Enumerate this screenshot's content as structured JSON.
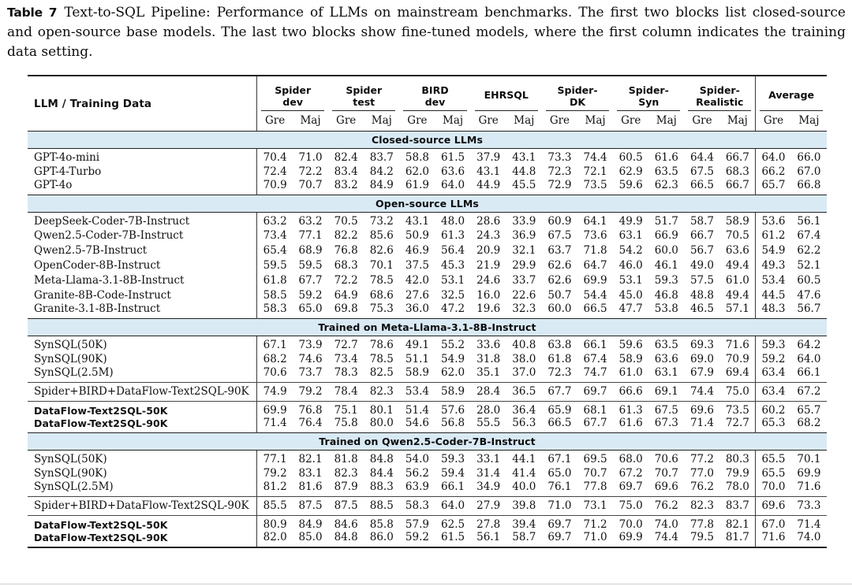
{
  "caption": {
    "label": "Table 7",
    "text": "Text-to-SQL Pipeline: Performance of LLMs on mainstream benchmarks. The first two blocks list closed-source and open-source base models. The last two blocks show fine-tuned models, where the first column indicates the training data setting."
  },
  "colors": {
    "section_band_bg": "#d9eaf5",
    "rule_color": "#222222",
    "text_color": "#111111"
  },
  "table": {
    "first_col_header": "LLM / Training Data",
    "metric_subheaders": [
      "Gre",
      "Maj"
    ],
    "benchmarks": [
      {
        "id": "spider-dev",
        "lines": [
          "Spider",
          "dev"
        ]
      },
      {
        "id": "spider-test",
        "lines": [
          "Spider",
          "test"
        ]
      },
      {
        "id": "bird-dev",
        "lines": [
          "BIRD",
          "dev"
        ]
      },
      {
        "id": "ehrsql",
        "lines": [
          "EHRSQL"
        ]
      },
      {
        "id": "spider-dk",
        "lines": [
          "Spider-",
          "DK"
        ]
      },
      {
        "id": "spider-syn",
        "lines": [
          "Spider-",
          "Syn"
        ]
      },
      {
        "id": "spider-realistic",
        "lines": [
          "Spider-",
          "Realistic"
        ]
      },
      {
        "id": "average",
        "lines": [
          "Average"
        ]
      }
    ],
    "sections": [
      {
        "title": "Closed-source LLMs",
        "subsections": [
          {
            "bold": false,
            "rows": [
              {
                "name": "GPT-4o-mini",
                "values": [
                  "70.4",
                  "71.0",
                  "82.4",
                  "83.7",
                  "58.8",
                  "61.5",
                  "37.9",
                  "43.1",
                  "73.3",
                  "74.4",
                  "60.5",
                  "61.6",
                  "64.4",
                  "66.7",
                  "64.0",
                  "66.0"
                ]
              },
              {
                "name": "GPT-4-Turbo",
                "values": [
                  "72.4",
                  "72.2",
                  "83.4",
                  "84.2",
                  "62.0",
                  "63.6",
                  "43.1",
                  "44.8",
                  "72.3",
                  "72.1",
                  "62.9",
                  "63.5",
                  "67.5",
                  "68.3",
                  "66.2",
                  "67.0"
                ]
              },
              {
                "name": "GPT-4o",
                "values": [
                  "70.9",
                  "70.7",
                  "83.2",
                  "84.9",
                  "61.9",
                  "64.0",
                  "44.9",
                  "45.5",
                  "72.9",
                  "73.5",
                  "59.6",
                  "62.3",
                  "66.5",
                  "66.7",
                  "65.7",
                  "66.8"
                ]
              }
            ]
          }
        ]
      },
      {
        "title": "Open-source LLMs",
        "subsections": [
          {
            "bold": false,
            "rows": [
              {
                "name": "DeepSeek-Coder-7B-Instruct",
                "values": [
                  "63.2",
                  "63.2",
                  "70.5",
                  "73.2",
                  "43.1",
                  "48.0",
                  "28.6",
                  "33.9",
                  "60.9",
                  "64.1",
                  "49.9",
                  "51.7",
                  "58.7",
                  "58.9",
                  "53.6",
                  "56.1"
                ]
              },
              {
                "name": "Qwen2.5-Coder-7B-Instruct",
                "values": [
                  "73.4",
                  "77.1",
                  "82.2",
                  "85.6",
                  "50.9",
                  "61.3",
                  "24.3",
                  "36.9",
                  "67.5",
                  "73.6",
                  "63.1",
                  "66.9",
                  "66.7",
                  "70.5",
                  "61.2",
                  "67.4"
                ]
              },
              {
                "name": "Qwen2.5-7B-Instruct",
                "values": [
                  "65.4",
                  "68.9",
                  "76.8",
                  "82.6",
                  "46.9",
                  "56.4",
                  "20.9",
                  "32.1",
                  "63.7",
                  "71.8",
                  "54.2",
                  "60.0",
                  "56.7",
                  "63.6",
                  "54.9",
                  "62.2"
                ]
              },
              {
                "name": "OpenCoder-8B-Instruct",
                "values": [
                  "59.5",
                  "59.5",
                  "68.3",
                  "70.1",
                  "37.5",
                  "45.3",
                  "21.9",
                  "29.9",
                  "62.6",
                  "64.7",
                  "46.0",
                  "46.1",
                  "49.0",
                  "49.4",
                  "49.3",
                  "52.1"
                ]
              },
              {
                "name": "Meta-Llama-3.1-8B-Instruct",
                "values": [
                  "61.8",
                  "67.7",
                  "72.2",
                  "78.5",
                  "42.0",
                  "53.1",
                  "24.6",
                  "33.7",
                  "62.6",
                  "69.9",
                  "53.1",
                  "59.3",
                  "57.5",
                  "61.0",
                  "53.4",
                  "60.5"
                ]
              },
              {
                "name": "Granite-8B-Code-Instruct",
                "values": [
                  "58.5",
                  "59.2",
                  "64.9",
                  "68.6",
                  "27.6",
                  "32.5",
                  "16.0",
                  "22.6",
                  "50.7",
                  "54.4",
                  "45.0",
                  "46.8",
                  "48.8",
                  "49.4",
                  "44.5",
                  "47.6"
                ]
              },
              {
                "name": "Granite-3.1-8B-Instruct",
                "values": [
                  "58.3",
                  "65.0",
                  "69.8",
                  "75.3",
                  "36.0",
                  "47.2",
                  "19.6",
                  "32.3",
                  "60.0",
                  "66.5",
                  "47.7",
                  "53.8",
                  "46.5",
                  "57.1",
                  "48.3",
                  "56.7"
                ]
              }
            ]
          }
        ]
      },
      {
        "title": "Trained on Meta-Llama-3.1-8B-Instruct",
        "subsections": [
          {
            "bold": false,
            "rows": [
              {
                "name": "SynSQL(50K)",
                "values": [
                  "67.1",
                  "73.9",
                  "72.7",
                  "78.6",
                  "49.1",
                  "55.2",
                  "33.6",
                  "40.8",
                  "63.8",
                  "66.1",
                  "59.6",
                  "63.5",
                  "69.3",
                  "71.6",
                  "59.3",
                  "64.2"
                ]
              },
              {
                "name": "SynSQL(90K)",
                "values": [
                  "68.2",
                  "74.6",
                  "73.4",
                  "78.5",
                  "51.1",
                  "54.9",
                  "31.8",
                  "38.0",
                  "61.8",
                  "67.4",
                  "58.9",
                  "63.6",
                  "69.0",
                  "70.9",
                  "59.2",
                  "64.0"
                ]
              },
              {
                "name": "SynSQL(2.5M)",
                "values": [
                  "70.6",
                  "73.7",
                  "78.3",
                  "82.5",
                  "58.9",
                  "62.0",
                  "35.1",
                  "37.0",
                  "72.3",
                  "74.7",
                  "61.0",
                  "63.1",
                  "67.9",
                  "69.4",
                  "63.4",
                  "66.1"
                ]
              }
            ]
          },
          {
            "bold": false,
            "rows": [
              {
                "name": "Spider+BIRD+DataFlow-Text2SQL-90K",
                "values": [
                  "74.9",
                  "79.2",
                  "78.4",
                  "82.3",
                  "53.4",
                  "58.9",
                  "28.4",
                  "36.5",
                  "67.7",
                  "69.7",
                  "66.6",
                  "69.1",
                  "74.4",
                  "75.0",
                  "63.4",
                  "67.2"
                ]
              }
            ]
          },
          {
            "bold": true,
            "rows": [
              {
                "name": "DataFlow-Text2SQL-50K",
                "values": [
                  "69.9",
                  "76.8",
                  "75.1",
                  "80.1",
                  "51.4",
                  "57.6",
                  "28.0",
                  "36.4",
                  "65.9",
                  "68.1",
                  "61.3",
                  "67.5",
                  "69.6",
                  "73.5",
                  "60.2",
                  "65.7"
                ]
              },
              {
                "name": "DataFlow-Text2SQL-90K",
                "values": [
                  "71.4",
                  "76.4",
                  "75.8",
                  "80.0",
                  "54.6",
                  "56.8",
                  "55.5",
                  "56.3",
                  "66.5",
                  "67.7",
                  "61.6",
                  "67.3",
                  "71.4",
                  "72.7",
                  "65.3",
                  "68.2"
                ]
              }
            ]
          }
        ]
      },
      {
        "title": "Trained on Qwen2.5-Coder-7B-Instruct",
        "subsections": [
          {
            "bold": false,
            "rows": [
              {
                "name": "SynSQL(50K)",
                "values": [
                  "77.1",
                  "82.1",
                  "81.8",
                  "84.8",
                  "54.0",
                  "59.3",
                  "33.1",
                  "44.1",
                  "67.1",
                  "69.5",
                  "68.0",
                  "70.6",
                  "77.2",
                  "80.3",
                  "65.5",
                  "70.1"
                ]
              },
              {
                "name": "SynSQL(90K)",
                "values": [
                  "79.2",
                  "83.1",
                  "82.3",
                  "84.4",
                  "56.2",
                  "59.4",
                  "31.4",
                  "41.4",
                  "65.0",
                  "70.7",
                  "67.2",
                  "70.7",
                  "77.0",
                  "79.9",
                  "65.5",
                  "69.9"
                ]
              },
              {
                "name": "SynSQL(2.5M)",
                "values": [
                  "81.2",
                  "81.6",
                  "87.9",
                  "88.3",
                  "63.9",
                  "66.1",
                  "34.9",
                  "40.0",
                  "76.1",
                  "77.8",
                  "69.7",
                  "69.6",
                  "76.2",
                  "78.0",
                  "70.0",
                  "71.6"
                ]
              }
            ]
          },
          {
            "bold": false,
            "rows": [
              {
                "name": "Spider+BIRD+DataFlow-Text2SQL-90K",
                "values": [
                  "85.5",
                  "87.5",
                  "87.5",
                  "88.5",
                  "58.3",
                  "64.0",
                  "27.9",
                  "39.8",
                  "71.0",
                  "73.1",
                  "75.0",
                  "76.2",
                  "82.3",
                  "83.7",
                  "69.6",
                  "73.3"
                ]
              }
            ]
          },
          {
            "bold": true,
            "rows": [
              {
                "name": "DataFlow-Text2SQL-50K",
                "values": [
                  "80.9",
                  "84.9",
                  "84.6",
                  "85.8",
                  "57.9",
                  "62.5",
                  "27.8",
                  "39.4",
                  "69.7",
                  "71.2",
                  "70.0",
                  "74.0",
                  "77.8",
                  "82.1",
                  "67.0",
                  "71.4"
                ]
              },
              {
                "name": "DataFlow-Text2SQL-90K",
                "values": [
                  "82.0",
                  "85.0",
                  "84.8",
                  "86.0",
                  "59.2",
                  "61.5",
                  "56.1",
                  "58.7",
                  "69.7",
                  "71.0",
                  "69.9",
                  "74.4",
                  "79.5",
                  "81.7",
                  "71.6",
                  "74.0"
                ]
              }
            ]
          }
        ]
      }
    ]
  }
}
